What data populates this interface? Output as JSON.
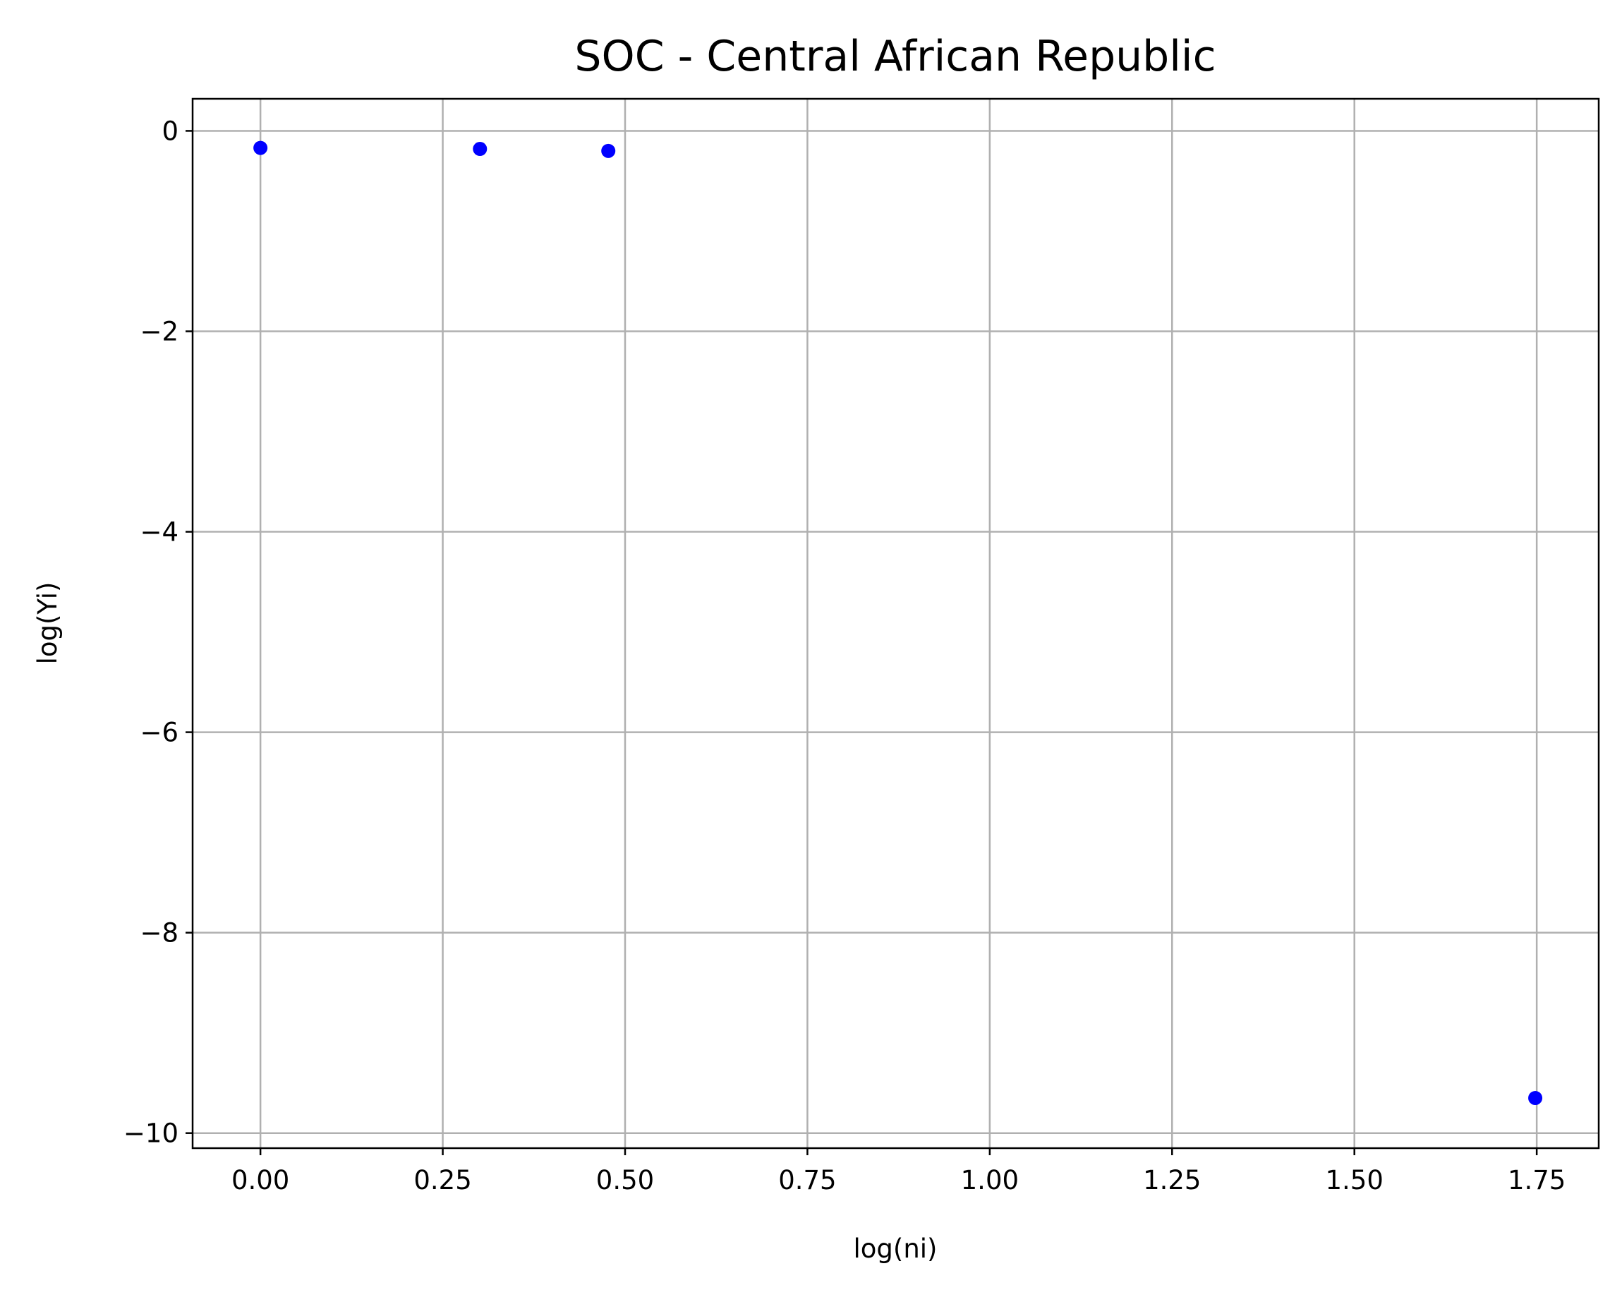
{
  "chart_data": {
    "type": "scatter",
    "title": "SOC - Central African Republic",
    "xlabel": "log(ni)",
    "ylabel": "log(Yi)",
    "xlim": [
      -0.093,
      1.835
    ],
    "ylim": [
      -10.15,
      0.32
    ],
    "xticks": [
      0.0,
      0.25,
      0.5,
      0.75,
      1.0,
      1.25,
      1.5,
      1.75
    ],
    "xtick_labels": [
      "0.00",
      "0.25",
      "0.50",
      "0.75",
      "1.00",
      "1.25",
      "1.50",
      "1.75"
    ],
    "yticks": [
      0,
      -2,
      -4,
      -6,
      -8,
      -10
    ],
    "ytick_labels": [
      "0",
      "−2",
      "−4",
      "−6",
      "−8",
      "−10"
    ],
    "grid": true,
    "marker_color": "#0000ff",
    "points": [
      {
        "x": 0.0,
        "y": -0.17
      },
      {
        "x": 0.301,
        "y": -0.18
      },
      {
        "x": 0.477,
        "y": -0.2
      },
      {
        "x": 1.748,
        "y": -9.65
      }
    ]
  }
}
